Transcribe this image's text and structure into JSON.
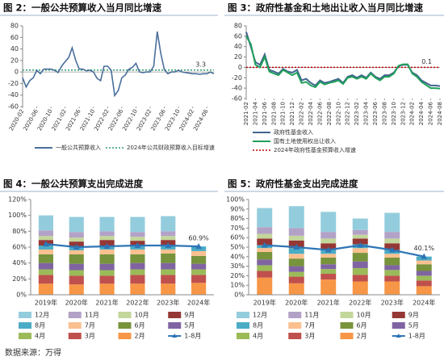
{
  "chart_data": [
    {
      "type": "line",
      "title": "图 2：一般公共预算收入当月同比增速",
      "categories": [
        "2020-02",
        null,
        null,
        null,
        "2020-06",
        null,
        null,
        null,
        "2020-10",
        null,
        null,
        null,
        "2021-02",
        null,
        null,
        null,
        "2021-06",
        null,
        null,
        null,
        "2021-10",
        null,
        null,
        null,
        "2022-02",
        null,
        null,
        null,
        "2022-06",
        null,
        null,
        null,
        "2022-10",
        null,
        null,
        null,
        "2023-02",
        null,
        null,
        null,
        "2023-06",
        null,
        null,
        null,
        "2023-10",
        null,
        null,
        null,
        "2024-02",
        null,
        null,
        null,
        "2024-06",
        null,
        null
      ],
      "series": [
        {
          "name": "一般公共预算收入",
          "color": "#4a6f9c",
          "values": [
            -10,
            -26,
            -15,
            -10,
            3,
            -3,
            5,
            5,
            5,
            3,
            -1,
            10,
            18,
            25,
            42,
            20,
            5,
            5,
            2,
            3,
            0,
            -11,
            -15,
            10,
            10,
            3,
            -41,
            -32,
            -10,
            -5,
            5,
            8,
            15,
            0,
            -1,
            0,
            0,
            10,
            70,
            32,
            4,
            -3,
            0,
            0,
            3,
            0,
            -1,
            -2,
            -3,
            -3,
            -4,
            -3,
            -3,
            0,
            -3
          ]
        }
      ],
      "reference_lines": [
        {
          "name": "2024年公共财政预算收入目标增速",
          "color": "#2e9e6e",
          "value": 3.3
        }
      ],
      "ylim": [
        -60,
        80
      ],
      "yticks": [
        -60,
        -40,
        -20,
        0,
        20,
        40,
        60,
        80
      ],
      "legend": "bottom"
    },
    {
      "type": "line",
      "title": "图 3：政府性基金和土地出让收入当月同比增速",
      "categories": [
        "2021-02",
        null,
        "2021-04",
        null,
        "2021-06",
        null,
        "2021-08",
        null,
        "2021-10",
        null,
        "2021-12",
        null,
        "2022-02",
        null,
        "2022-04",
        null,
        "2022-06",
        null,
        "2022-08",
        null,
        "2022-10",
        null,
        "2022-12",
        null,
        "2023-02",
        null,
        "2023-04",
        null,
        "2023-06",
        null,
        "2023-08",
        null,
        "2023-10",
        null,
        "2023-12",
        null,
        "2024-02",
        null,
        "2024-04",
        null,
        "2024-06",
        null,
        "2024-08"
      ],
      "series": [
        {
          "name": "政府性基金收入",
          "color": "#41648f",
          "values": [
            68,
            40,
            10,
            5,
            25,
            -5,
            -8,
            -12,
            -3,
            -8,
            -10,
            -5,
            -25,
            -22,
            -30,
            -35,
            -25,
            -30,
            -28,
            -25,
            -22,
            -30,
            -18,
            -15,
            -20,
            -15,
            -20,
            -10,
            -18,
            -22,
            -15,
            -15,
            -10,
            2,
            5,
            5,
            -10,
            -15,
            -25,
            -30,
            -35,
            -35,
            -36
          ]
        },
        {
          "name": "国有土地使用权出让收入",
          "color": "#1fa05a",
          "values": [
            60,
            45,
            5,
            0,
            20,
            -8,
            -12,
            -15,
            -5,
            -10,
            -15,
            -10,
            -30,
            -28,
            -35,
            -38,
            -28,
            -33,
            -30,
            -28,
            -25,
            -32,
            -20,
            -18,
            -22,
            -18,
            -22,
            -12,
            -20,
            -25,
            -18,
            -18,
            -12,
            3,
            6,
            6,
            -12,
            -18,
            -28,
            -34,
            -40,
            -40,
            -41
          ]
        }
      ],
      "reference_lines": [
        {
          "name": "2024年政府性基金预算收入增速",
          "color": "#c00000",
          "value": 0.1
        }
      ],
      "ylim": [
        -60,
        80
      ],
      "yticks": [
        -60,
        -40,
        -20,
        0,
        20,
        40,
        60,
        80
      ],
      "legend": "bottom"
    },
    {
      "type": "stacked_bar",
      "title": "图 4：一般公共预算支出完成进度",
      "categories": [
        "2019年",
        "2020年",
        "2021年",
        "2022年",
        "2023年",
        "2024年"
      ],
      "series": [
        {
          "name": "12月",
          "color": "#93cddd",
          "values": [
            19,
            19,
            18,
            19,
            19,
            null
          ]
        },
        {
          "name": "11月",
          "color": "#b3a2c7",
          "values": [
            7,
            7,
            6,
            6,
            6,
            null
          ]
        },
        {
          "name": "10月",
          "color": "#c3d69b",
          "values": [
            5,
            5,
            5,
            5,
            5,
            null
          ]
        },
        {
          "name": "9月",
          "color": "#953735",
          "values": [
            7,
            7,
            7,
            6,
            7,
            null
          ]
        },
        {
          "name": "8月",
          "color": "#4bacc6",
          "values": [
            5,
            4,
            5,
            5,
            5,
            5.9
          ]
        },
        {
          "name": "7月",
          "color": "#fac090",
          "values": [
            6,
            5,
            6,
            6,
            5,
            6
          ]
        },
        {
          "name": "6月",
          "color": "#77933c",
          "values": [
            11,
            12,
            12,
            11,
            12,
            10
          ]
        },
        {
          "name": "5月",
          "color": "#8064a2",
          "values": [
            8,
            8,
            8,
            8,
            8,
            7
          ]
        },
        {
          "name": "4月",
          "color": "#9bbb59",
          "values": [
            7,
            7,
            7,
            7,
            7,
            7
          ]
        },
        {
          "name": "3月",
          "color": "#c0504d",
          "values": [
            11,
            11,
            10,
            11,
            11,
            10
          ]
        },
        {
          "name": "2月",
          "color": "#f79646",
          "values": [
            14,
            13,
            14,
            14,
            14,
            15
          ]
        }
      ],
      "line": {
        "name": "1-8月",
        "color": "#2e75b6",
        "values": [
          64,
          60,
          61,
          62,
          62,
          60.9
        ],
        "value_labels": [
          null,
          null,
          null,
          null,
          null,
          "60.9%"
        ]
      },
      "ylim": [
        0,
        120
      ],
      "yticks": [
        {
          "value": 0,
          "label": "0%"
        },
        {
          "value": 20,
          "label": "20%"
        },
        {
          "value": 40,
          "label": "40%"
        },
        {
          "value": 60,
          "label": "60%"
        },
        {
          "value": 80,
          "label": "80%"
        },
        {
          "value": 100,
          "label": "100%"
        },
        {
          "value": 120,
          "label": "120%"
        }
      ],
      "legend": "bottom"
    },
    {
      "type": "stacked_bar",
      "title": "图 5：政府性基金支出完成进度",
      "categories": [
        "2019年",
        "2020年",
        "2021年",
        "2022年",
        "2023年",
        "2024年"
      ],
      "series": [
        {
          "name": "12月",
          "color": "#93cddd",
          "values": [
            20,
            23,
            21,
            12,
            20,
            null
          ]
        },
        {
          "name": "11月",
          "color": "#b3a2c7",
          "values": [
            7,
            8,
            7,
            5,
            7,
            null
          ]
        },
        {
          "name": "10月",
          "color": "#c3d69b",
          "values": [
            5,
            5,
            5,
            4,
            5,
            null
          ]
        },
        {
          "name": "9月",
          "color": "#953735",
          "values": [
            7,
            8,
            7,
            6,
            7,
            null
          ]
        },
        {
          "name": "8月",
          "color": "#4bacc6",
          "values": [
            3,
            6,
            4,
            4,
            4,
            4.1
          ]
        },
        {
          "name": "7月",
          "color": "#fac090",
          "values": [
            4,
            5,
            4,
            5,
            4,
            4
          ]
        },
        {
          "name": "6月",
          "color": "#77933c",
          "values": [
            8,
            8,
            7,
            9,
            8,
            7
          ]
        },
        {
          "name": "5月",
          "color": "#8064a2",
          "values": [
            6,
            6,
            5,
            7,
            5,
            5
          ]
        },
        {
          "name": "4月",
          "color": "#9bbb59",
          "values": [
            6,
            5,
            5,
            7,
            6,
            5
          ]
        },
        {
          "name": "3月",
          "color": "#c0504d",
          "values": [
            7,
            7,
            6,
            7,
            6,
            6
          ]
        },
        {
          "name": "2月",
          "color": "#f79646",
          "values": [
            18,
            12,
            16,
            14,
            14,
            9
          ]
        }
      ],
      "line": {
        "name": "1-8月",
        "color": "#2e75b6",
        "values": [
          52,
          50,
          47,
          52,
          47,
          40.1
        ],
        "value_labels": [
          null,
          null,
          null,
          null,
          null,
          "40.1%"
        ]
      },
      "ylim": [
        0,
        100
      ],
      "yticks": [
        {
          "value": 0,
          "label": "0%"
        },
        {
          "value": 10,
          "label": "10%"
        },
        {
          "value": 20,
          "label": "20%"
        },
        {
          "value": 30,
          "label": "30%"
        },
        {
          "value": 40,
          "label": "40%"
        },
        {
          "value": 50,
          "label": "50%"
        },
        {
          "value": 60,
          "label": "60%"
        },
        {
          "value": 70,
          "label": "70%"
        },
        {
          "value": 80,
          "label": "80%"
        },
        {
          "value": 90,
          "label": "90%"
        },
        {
          "value": 100,
          "label": "100%"
        }
      ],
      "legend": "bottom"
    }
  ],
  "source": "数据来源：万得"
}
